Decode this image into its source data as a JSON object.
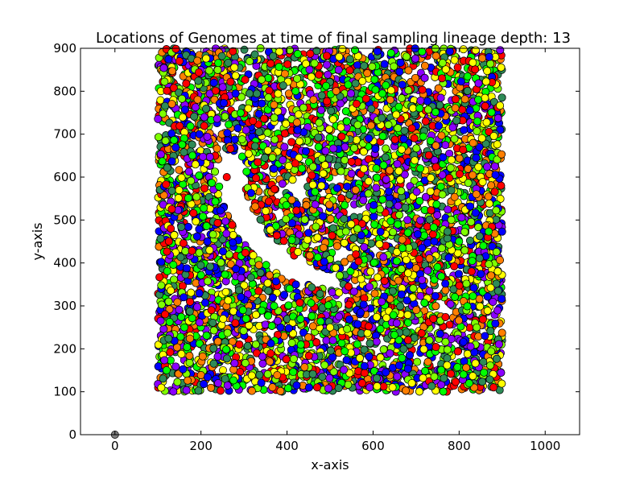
{
  "chart_data": {
    "type": "scatter",
    "title": "Locations of Genomes at time of final sampling lineage depth: 13",
    "xlabel": "x-axis",
    "ylabel": "y-axis",
    "xlim": [
      -80,
      1080
    ],
    "ylim": [
      0,
      900
    ],
    "x_ticks": [
      0,
      200,
      400,
      600,
      800,
      1000
    ],
    "y_ticks": [
      0,
      100,
      200,
      300,
      400,
      500,
      600,
      700,
      800,
      900
    ],
    "grid": false,
    "legend": "none",
    "marker": "circle with black edge",
    "palette": [
      "#ff0000",
      "#ffff00",
      "#00ff00",
      "#0000ff",
      "#8b00ff",
      "#ff7f00",
      "#2e8b57",
      "#7fff00"
    ],
    "region": {
      "x_range": [
        100,
        900
      ],
      "y_range": [
        100,
        900
      ],
      "void_crescent": "empty arc from about (330, 640) curving through (400, 370) to (470, 350)"
    },
    "series": [
      {
        "points": [
          {
            "x": 0,
            "y": 0,
            "color": "#808080"
          },
          {
            "x": 150,
            "y": 870,
            "color": "#ff0000"
          },
          {
            "x": 230,
            "y": 820,
            "color": "#0000ff"
          },
          {
            "x": 310,
            "y": 760,
            "color": "#ffff00"
          },
          {
            "x": 420,
            "y": 800,
            "color": "#00ff00"
          },
          {
            "x": 520,
            "y": 850,
            "color": "#8b00ff"
          },
          {
            "x": 640,
            "y": 780,
            "color": "#ff7f00"
          },
          {
            "x": 760,
            "y": 830,
            "color": "#ff0000"
          },
          {
            "x": 870,
            "y": 880,
            "color": "#0000ff"
          },
          {
            "x": 180,
            "y": 650,
            "color": "#00ff00"
          },
          {
            "x": 260,
            "y": 600,
            "color": "#ff0000"
          },
          {
            "x": 390,
            "y": 640,
            "color": "#8b00ff"
          },
          {
            "x": 480,
            "y": 580,
            "color": "#ffff00"
          },
          {
            "x": 590,
            "y": 690,
            "color": "#0000ff"
          },
          {
            "x": 710,
            "y": 620,
            "color": "#00ff00"
          },
          {
            "x": 840,
            "y": 560,
            "color": "#ff7f00"
          },
          {
            "x": 130,
            "y": 480,
            "color": "#ff0000"
          },
          {
            "x": 220,
            "y": 430,
            "color": "#ffff00"
          },
          {
            "x": 450,
            "y": 470,
            "color": "#0000ff"
          },
          {
            "x": 560,
            "y": 420,
            "color": "#ff0000"
          },
          {
            "x": 680,
            "y": 500,
            "color": "#8b00ff"
          },
          {
            "x": 800,
            "y": 450,
            "color": "#00ff00"
          },
          {
            "x": 890,
            "y": 380,
            "color": "#ffff00"
          },
          {
            "x": 160,
            "y": 320,
            "color": "#0000ff"
          },
          {
            "x": 280,
            "y": 260,
            "color": "#ff0000"
          },
          {
            "x": 370,
            "y": 300,
            "color": "#00ff00"
          },
          {
            "x": 500,
            "y": 250,
            "color": "#ffff00"
          },
          {
            "x": 620,
            "y": 310,
            "color": "#8b00ff"
          },
          {
            "x": 740,
            "y": 270,
            "color": "#ff0000"
          },
          {
            "x": 860,
            "y": 230,
            "color": "#0000ff"
          },
          {
            "x": 120,
            "y": 150,
            "color": "#00ff00"
          },
          {
            "x": 240,
            "y": 120,
            "color": "#8b00ff"
          },
          {
            "x": 360,
            "y": 170,
            "color": "#ff7f00"
          },
          {
            "x": 470,
            "y": 110,
            "color": "#ff0000"
          },
          {
            "x": 580,
            "y": 160,
            "color": "#0000ff"
          },
          {
            "x": 690,
            "y": 120,
            "color": "#ffff00"
          },
          {
            "x": 810,
            "y": 140,
            "color": "#00ff00"
          },
          {
            "x": 880,
            "y": 110,
            "color": "#ff0000"
          }
        ]
      }
    ]
  }
}
